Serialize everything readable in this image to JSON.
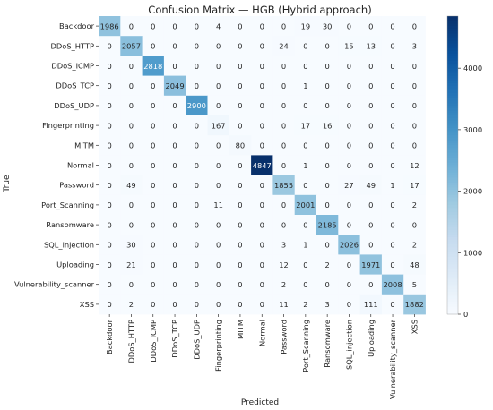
{
  "chart_data": {
    "type": "heatmap",
    "title": "Confusion Matrix — HGB (Hybrid approach)",
    "xlabel": "Predicted",
    "ylabel": "True",
    "row_labels": [
      "Backdoor",
      "DDoS_HTTP",
      "DDoS_ICMP",
      "DDoS_TCP",
      "DDoS_UDP",
      "Fingerprinting",
      "MITM",
      "Normal",
      "Password",
      "Port_Scanning",
      "Ransomware",
      "SQL_injection",
      "Uploading",
      "Vulnerability_scanner",
      "XSS"
    ],
    "col_labels": [
      "Backdoor",
      "DDoS_HTTP",
      "DDoS_ICMP",
      "DDoS_TCP",
      "DDoS_UDP",
      "Fingerprinting",
      "MITM",
      "Normal",
      "Password",
      "Port_Scanning",
      "Ransomware",
      "SQL_injection",
      "Uploading",
      "Vulnerability_scanner",
      "XSS"
    ],
    "values": [
      [
        1986,
        0,
        0,
        0,
        0,
        4,
        0,
        0,
        0,
        19,
        30,
        0,
        0,
        0,
        0
      ],
      [
        0,
        2057,
        0,
        0,
        0,
        0,
        0,
        0,
        24,
        0,
        0,
        15,
        13,
        0,
        3
      ],
      [
        0,
        0,
        2818,
        0,
        0,
        0,
        0,
        0,
        0,
        0,
        0,
        0,
        0,
        0,
        0
      ],
      [
        0,
        0,
        0,
        2049,
        0,
        0,
        0,
        0,
        0,
        1,
        0,
        0,
        0,
        0,
        0
      ],
      [
        0,
        0,
        0,
        0,
        2900,
        0,
        0,
        0,
        0,
        0,
        0,
        0,
        0,
        0,
        0
      ],
      [
        0,
        0,
        0,
        0,
        0,
        167,
        0,
        0,
        0,
        17,
        16,
        0,
        0,
        0,
        0
      ],
      [
        0,
        0,
        0,
        0,
        0,
        0,
        80,
        0,
        0,
        0,
        0,
        0,
        0,
        0,
        0
      ],
      [
        0,
        0,
        0,
        0,
        0,
        0,
        0,
        4847,
        0,
        1,
        0,
        0,
        0,
        0,
        12
      ],
      [
        0,
        49,
        0,
        0,
        0,
        0,
        0,
        0,
        1855,
        0,
        0,
        27,
        49,
        1,
        17
      ],
      [
        0,
        0,
        0,
        0,
        0,
        11,
        0,
        0,
        0,
        2001,
        0,
        0,
        0,
        0,
        2
      ],
      [
        0,
        0,
        0,
        0,
        0,
        0,
        0,
        0,
        0,
        0,
        2185,
        0,
        0,
        0,
        0
      ],
      [
        0,
        30,
        0,
        0,
        0,
        0,
        0,
        0,
        3,
        1,
        0,
        2026,
        0,
        0,
        2
      ],
      [
        0,
        21,
        0,
        0,
        0,
        0,
        0,
        0,
        12,
        0,
        2,
        0,
        1971,
        0,
        48
      ],
      [
        0,
        0,
        0,
        0,
        0,
        0,
        0,
        0,
        2,
        0,
        0,
        0,
        0,
        2008,
        5
      ],
      [
        0,
        2,
        0,
        0,
        0,
        0,
        0,
        0,
        11,
        2,
        3,
        0,
        111,
        0,
        1882
      ]
    ],
    "colorbar": {
      "ticks": [
        0,
        1000,
        2000,
        3000,
        4000
      ],
      "min": 0,
      "max": 4847,
      "colormap": "Blues",
      "low_color": "#f7fbff",
      "high_color": "#08306b"
    }
  }
}
